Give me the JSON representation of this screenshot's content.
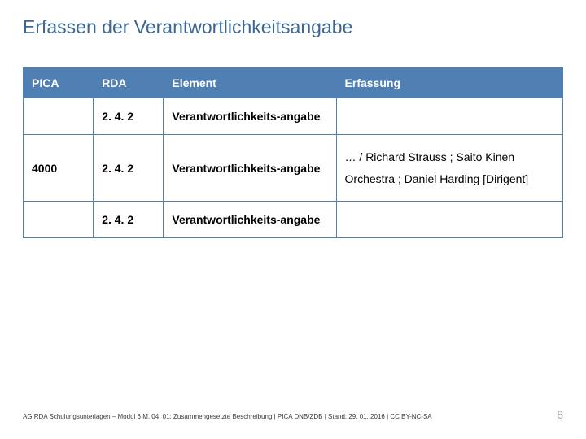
{
  "title": "Erfassen der Verantwortlichkeitsangabe",
  "table": {
    "header_bg": "#4f7fb3",
    "header_fg": "#ffffff",
    "border_color": "#4f7fb3",
    "columns": [
      "PICA",
      "RDA",
      "Element",
      "Erfassung"
    ],
    "rows": [
      {
        "pica": "",
        "rda": "2. 4. 2",
        "element": "Verantwortlichkeits-angabe",
        "erfassung": ""
      },
      {
        "pica": "4000",
        "rda": "2. 4. 2",
        "element": "Verantwortlichkeits-angabe",
        "erfassung": "… / Richard Strauss ; Saito Kinen Orchestra ; Daniel Harding [Dirigent]"
      },
      {
        "pica": "",
        "rda": "2. 4. 2",
        "element": "Verantwortlichkeits-angabe",
        "erfassung": ""
      }
    ]
  },
  "footer": "AG RDA Schulungsunterlagen – Modul 6 M. 04. 01: Zusammengesetzte Beschreibung | PICA DNB/ZDB | Stand: 29. 01. 2016 | CC BY-NC-SA",
  "page_number": "8"
}
